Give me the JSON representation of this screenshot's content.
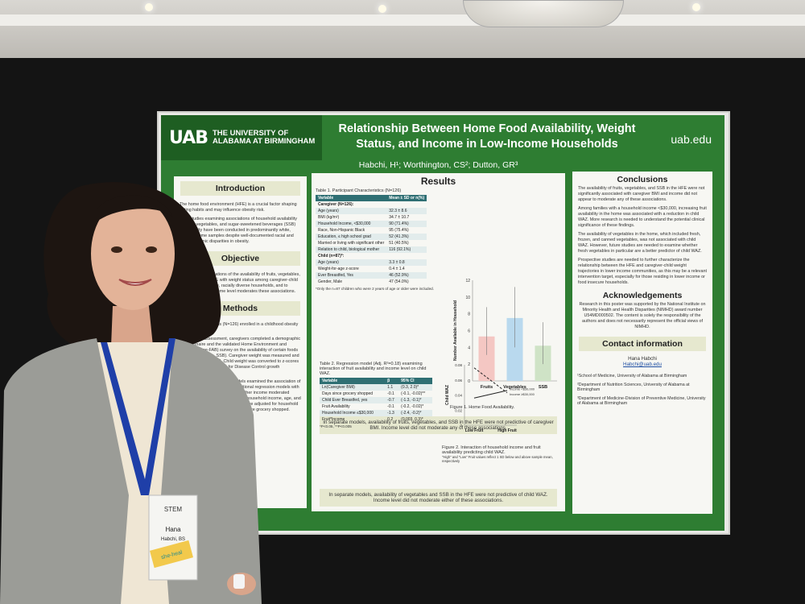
{
  "poster": {
    "logo_mark": "UAB",
    "logo_name_1": "THE UNIVERSITY OF",
    "logo_name_2": "ALABAMA AT BIRMINGHAM",
    "title_1": "Relationship Between Home Food Availability, Weight",
    "title_2": "Status, and Income in Low-Income Households",
    "url": "uab.edu",
    "authors": "Habchi, H¹; Worthington, CS²; Dutton, GR³",
    "introduction": {
      "heading": "Introduction",
      "p1": "The home food environment (HFE) is a crucial factor shaping eating habits and may influence obesity risk.",
      "p2": "Prior studies examining associations of household availability of fruits, vegetables, and sugar-sweetened beverages (SSB) with obesity have been conducted in predominantly white, higher-income samples despite well-documented racial and socioeconomic disparities in obesity."
    },
    "objective": {
      "heading": "Objective",
      "p1": "To examine associations of the availability of fruits, vegetables, and SSB in the HFE with weight status among caregiver-child dyads in low-income, racially diverse households, and to explore whether income level moderates these associations."
    },
    "methods": {
      "heading": "Methods",
      "p1": "Caregiver-child dyads (N=126) enrolled in a childhood obesity prevention trial.",
      "p2": "At the study assessment, caregivers completed a demographic questionnaire and the validated Home Environment and Activity (Home-FAB) survey on the availability of certain foods (fruits, vegetables, SSB). Caregiver weight was measured and used to calculate BMI. Child weight was converted to z-scores (WAZ) using the Centers for Disease Control growth standards.",
      "p3": "Separate linear regression models examined the association of the HFE with caregiver BMI. Additional regression models with an interaction term examined whether income moderated associations. Caregiver age, race, household income, age, and days since last grocery shopping were adjusted for household income, ever breastfed, and days since grocery shopped."
    },
    "results": {
      "heading": "Results",
      "table1_caption": "Table 1. Participant Characteristics (N=126)",
      "table1_headers": [
        "Variable",
        "Mean ± SD or n(%)"
      ],
      "caregiver_label": "Caregiver (N=126):",
      "caregiver_rows": [
        [
          "Age (years)",
          "32.3 ± 8.6"
        ],
        [
          "BMI (kg/m²)",
          "34.7 ± 10.7"
        ],
        [
          "Household Income, <$30,000",
          "90 (71.4%)"
        ],
        [
          "Race, Non-Hispanic Black",
          "95 (75.4%)"
        ],
        [
          "Education, ≤ high school grad",
          "52 (41.3%)"
        ],
        [
          "Married or living with significant other",
          "51 (40.5%)"
        ],
        [
          "Relation to child, biological mother",
          "116 (92.1%)"
        ]
      ],
      "child_label": "Child (n=87)*:",
      "child_rows": [
        [
          "Age (years)",
          "3.3 ± 0.8"
        ],
        [
          "Weight-for-age z-score",
          "0.4 ± 1.4"
        ],
        [
          "Ever Breastfed, Yes",
          "46 (52.9%)"
        ],
        [
          "Gender, Male",
          "47 (54.0%)"
        ]
      ],
      "table1_footnote": "*Only the n=87 children who were 2 years of age or older were included.",
      "fig1_caption": "Figure 1. Home Food Availability.",
      "fig1_ylabel": "Number Available in Household",
      "note1": "In separate models, availability of fruits, vegetables, and SSB in the HFE were not predictive of caregiver BMI. Income level did not moderate any of these associations.",
      "table2_caption": "Table 2. Regression model (Adj. R²=0.18) examining interaction of fruit availability and income level on child WAZ.",
      "table2_headers": [
        "Variable",
        "β",
        "95% CI"
      ],
      "table2_rows": [
        [
          "Ln(Caregiver BMI)",
          "1.1",
          "(0.3, 2.0)*"
        ],
        [
          "Days since grocery shopped",
          "-0.1",
          "(-0.1, -0.02)**"
        ],
        [
          "Child Ever Breastfed, yes",
          "-0.7",
          "(-1.3, -0.1)*"
        ],
        [
          "Fruit Availability",
          "-0.1",
          "(-0.2, -0.02)*"
        ],
        [
          "Household Income ≤$30,000",
          "-1.3",
          "(-2.4, -0.2)*"
        ],
        [
          "Fruit*Income",
          "0.2",
          "(0.003, 0.3)*"
        ]
      ],
      "table2_footnote": "*P<0.05, **P<0.005",
      "fig2_caption": "Figure 2. Interaction of household income and fruit availability predicting child WAZ.",
      "fig2_caption_small": "\"High\" and \"Low\" Fruit values reflect 1 SD below and above sample mean, respectively",
      "fig2_ylabel": "Child WAZ",
      "note2": "In separate models, availability of vegetables and SSB in the HFE were not predictive of child WAZ. Income level did not moderate either of these associations."
    },
    "conclusions": {
      "heading": "Conclusions",
      "b1": "The availability of fruits, vegetables, and SSB in the HFE were not significantly associated with caregiver BMI and income did not appear to moderate any of these associations.",
      "b2": "Among families with a household income <$30,000, increasing fruit availability in the home was associated with a reduction in child WAZ. More research is needed to understand the potential clinical significance of these findings.",
      "b3": "The availability of vegetables in the home, which included fresh, frozen, and canned vegetables, was not associated with child WAZ. However, future studies are needed to examine whether fresh vegetables in particular are a better predictor of child WAZ.",
      "b4": "Prospective studies are needed to further characterize the relationship between the HFE and caregiver-child weight trajectories in lower income communities, as this may be a relevant intervention target, especially for those residing in lower income or food insecure households."
    },
    "acknowledgements": {
      "heading": "Acknowledgements",
      "text": "Research in this poster was supported by the National Institute on Minority Health and Health Disparities (NIMHD) award number U54MD000502. The content is solely the responsibility of the authors and does not necessarily represent the official views of NIMHD."
    },
    "contact": {
      "heading": "Contact information",
      "name": "Hana Habchi",
      "email": "Habchi@uab.edu"
    },
    "affiliations": [
      "¹School of Medicine, University of Alabama at Birmingham",
      "²Department of Nutrition Sciences, University of Alabama at Birmingham",
      "³Department of Medicine-Division of Preventive Medicine, University of Alabama at Birmingham"
    ]
  },
  "badge": {
    "brand": "STEM",
    "first_name": "Hana",
    "last_name": "Habchi, BS",
    "sticker": "she-heal"
  },
  "chart_data": [
    {
      "type": "bar",
      "categories": [
        "Fruits",
        "Vegetables",
        "SSB"
      ],
      "values": [
        5.3,
        7.5,
        4.2
      ],
      "error_low": [
        3.1,
        4.0,
        2.0
      ],
      "error_high": [
        8.8,
        11.2,
        7.0
      ],
      "colors": [
        "#f4c7c3",
        "#b9d9ee",
        "#cfe3c6"
      ],
      "ylabel": "Number Available in Household",
      "ylim": [
        0,
        12
      ],
      "yticks": [
        0,
        2,
        4,
        6,
        8,
        10,
        12
      ],
      "title": "Figure 1. Home Food Availability."
    },
    {
      "type": "line",
      "categories": [
        "Low Fruit",
        "High Fruit"
      ],
      "series": [
        {
          "name": "Income <$30,000",
          "values": [
            0.076,
            0.043
          ],
          "dash": "dashed"
        },
        {
          "name": "Income ≥$30,000",
          "values": [
            0.036,
            0.046
          ],
          "dash": "solid"
        }
      ],
      "ylabel": "Child WAZ",
      "ylim": [
        0,
        0.08
      ],
      "yticks": [
        0,
        0.02,
        0.04,
        0.06,
        0.08
      ]
    }
  ]
}
